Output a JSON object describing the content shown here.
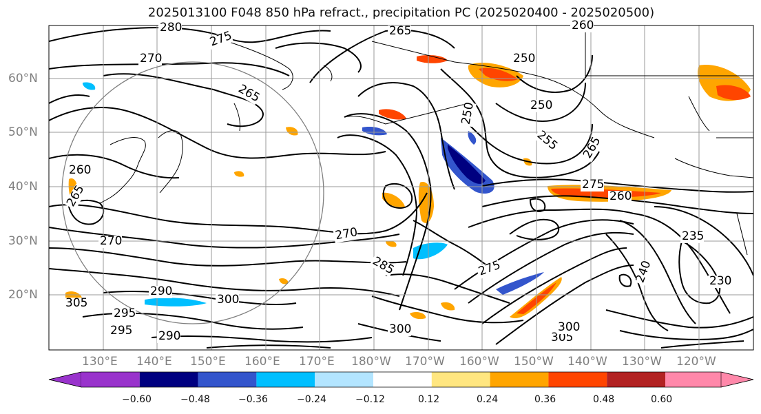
{
  "title": "2025013100 F048 850 hPa refract., precipitation PC (2025020400 - 2025020500)",
  "lat_labels": [
    "60°N",
    "50°N",
    "40°N",
    "30°N",
    "20°N"
  ],
  "lon_labels": [
    "130°E",
    "140°E",
    "150°E",
    "160°E",
    "170°E",
    "180°W",
    "170°W",
    "160°W",
    "150°W",
    "140°W",
    "130°W",
    "120°W"
  ],
  "contour_labels": [
    "280",
    "275",
    "265",
    "260",
    "270",
    "250",
    "265",
    "250",
    "255",
    "265",
    "275",
    "270",
    "260",
    "265",
    "270",
    "285",
    "300",
    "275",
    "235",
    "230",
    "290",
    "305",
    "295",
    "300",
    "295",
    "290",
    "305",
    "300",
    "260",
    "250",
    "240"
  ],
  "colorbar": {
    "tick_labels": [
      "−0.60",
      "−0.48",
      "−0.36",
      "−0.24",
      "−0.12",
      "0.12",
      "0.24",
      "0.36",
      "0.48",
      "0.60"
    ],
    "colors": [
      "#9933cc",
      "#000080",
      "#3355cc",
      "#00bfff",
      "#b3e5ff",
      "#ffffff",
      "#ffe680",
      "#ffa500",
      "#ff4500",
      "#b22222",
      "#ff88aa"
    ]
  }
}
